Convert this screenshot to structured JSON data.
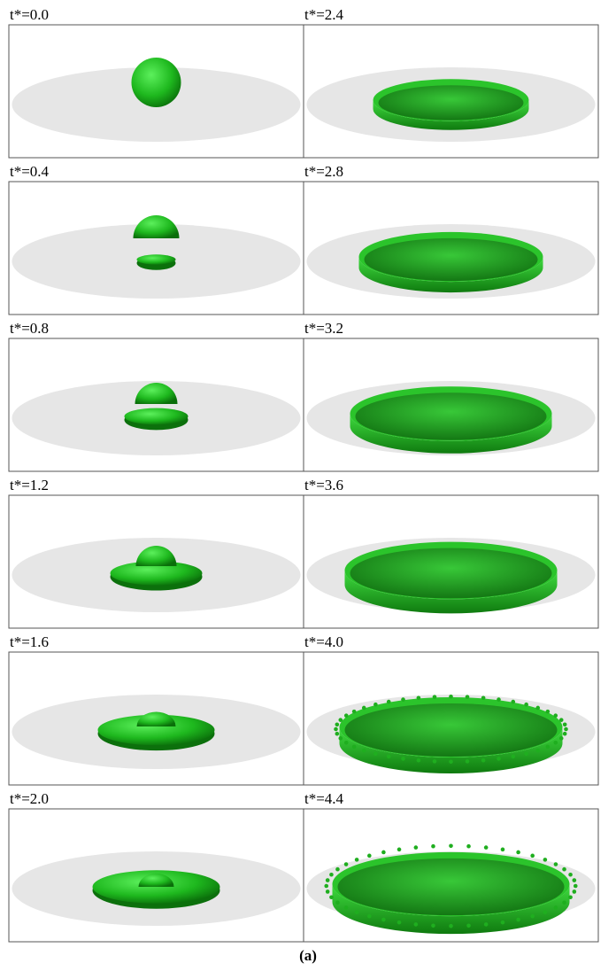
{
  "left": [
    "t*=0.0",
    "t*=0.4",
    "t*=0.8",
    "t*=1.2",
    "t*=1.6",
    "t*=2.0"
  ],
  "right": [
    "t*=2.4",
    "t*=2.8",
    "t*=3.2",
    "t*=3.6",
    "t*=4.0",
    "t*=4.4"
  ],
  "caption": "(a)"
}
